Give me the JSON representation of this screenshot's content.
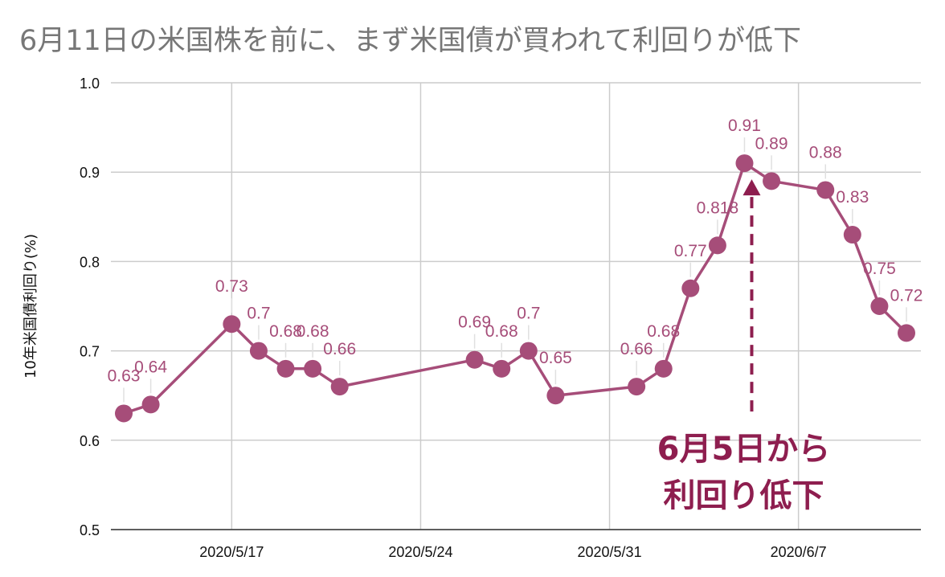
{
  "chart_data": {
    "type": "line",
    "title": "6月11日の米国株を前に、まず米国債が買われて利回りが低下",
    "xlabel": "",
    "ylabel": "10年米国債利回り(%)",
    "ylim": [
      0.5,
      1.0
    ],
    "yticks": [
      "0.5",
      "0.6",
      "0.7",
      "0.8",
      "0.9",
      "1.0"
    ],
    "xlim": [
      "2020-05-13",
      "2020-06-11"
    ],
    "xticks": [
      {
        "date": "2020-05-17",
        "label": "2020/5/17"
      },
      {
        "date": "2020-05-24",
        "label": "2020/5/24"
      },
      {
        "date": "2020-05-31",
        "label": "2020/5/31"
      },
      {
        "date": "2020-06-07",
        "label": "2020/6/7"
      }
    ],
    "grid": true,
    "series": [
      {
        "points": [
          {
            "x": "2020-05-13",
            "y": 0.63,
            "label": "0.63"
          },
          {
            "x": "2020-05-14",
            "y": 0.64,
            "label": "0.64"
          },
          {
            "x": "2020-05-17",
            "y": 0.73,
            "label": "0.73"
          },
          {
            "x": "2020-05-18",
            "y": 0.7,
            "label": "0.7"
          },
          {
            "x": "2020-05-19",
            "y": 0.68,
            "label": "0.68"
          },
          {
            "x": "2020-05-20",
            "y": 0.68,
            "label": "0.68"
          },
          {
            "x": "2020-05-21",
            "y": 0.66,
            "label": "0.66"
          },
          {
            "x": "2020-05-26",
            "y": 0.69,
            "label": "0.69"
          },
          {
            "x": "2020-05-27",
            "y": 0.68,
            "label": "0.68"
          },
          {
            "x": "2020-05-28",
            "y": 0.7,
            "label": "0.7"
          },
          {
            "x": "2020-05-29",
            "y": 0.65,
            "label": "0.65"
          },
          {
            "x": "2020-06-01",
            "y": 0.66,
            "label": "0.66"
          },
          {
            "x": "2020-06-02",
            "y": 0.68,
            "label": "0.68"
          },
          {
            "x": "2020-06-03",
            "y": 0.77,
            "label": "0.77"
          },
          {
            "x": "2020-06-04",
            "y": 0.818,
            "label": "0.818"
          },
          {
            "x": "2020-06-05",
            "y": 0.91,
            "label": "0.91"
          },
          {
            "x": "2020-06-06",
            "y": 0.89,
            "label": "0.89"
          },
          {
            "x": "2020-06-08",
            "y": 0.88,
            "label": "0.88"
          },
          {
            "x": "2020-06-09",
            "y": 0.83,
            "label": "0.83"
          },
          {
            "x": "2020-06-10",
            "y": 0.75,
            "label": "0.75"
          },
          {
            "x": "2020-06-11",
            "y": 0.72,
            "label": "0.72"
          }
        ]
      }
    ],
    "annotation": {
      "lines": [
        "6月5日から",
        "利回り低下"
      ],
      "date": "2020-06-05"
    },
    "colors": {
      "series": "#a64d79",
      "annotation": "#8e1e4f",
      "grid": "#cccccc",
      "title": "#777777"
    }
  }
}
